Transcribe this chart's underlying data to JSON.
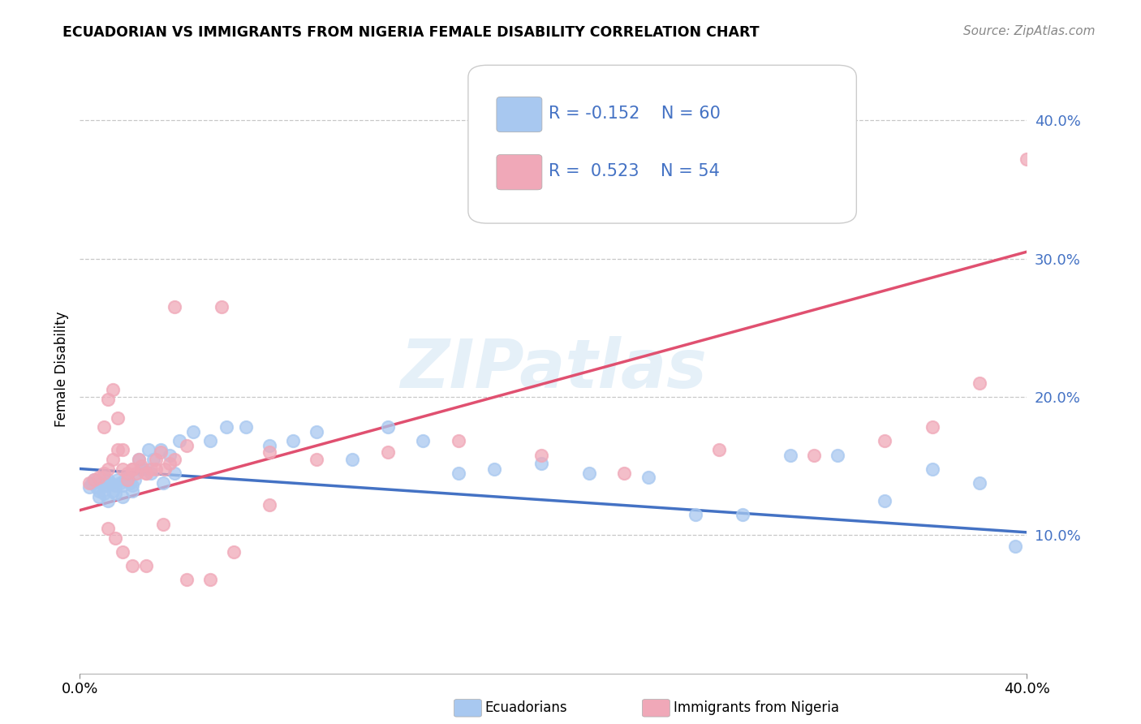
{
  "title": "ECUADORIAN VS IMMIGRANTS FROM NIGERIA FEMALE DISABILITY CORRELATION CHART",
  "source": "Source: ZipAtlas.com",
  "ylabel": "Female Disability",
  "watermark": "ZIPatlas",
  "xlim": [
    0.0,
    0.4
  ],
  "ylim": [
    0.0,
    0.44
  ],
  "ytick_labels": [
    "10.0%",
    "20.0%",
    "30.0%",
    "40.0%"
  ],
  "ytick_values": [
    0.1,
    0.2,
    0.3,
    0.4
  ],
  "xtick_labels": [
    "0.0%",
    "40.0%"
  ],
  "xtick_values": [
    0.0,
    0.4
  ],
  "grid_color": "#c8c8c8",
  "background_color": "#ffffff",
  "ecuadorians_color": "#a8c8f0",
  "nigeria_color": "#f0a8b8",
  "ecuadorians_line_color": "#4472c4",
  "nigeria_line_color": "#e05070",
  "legend_R_ecuador": "R = -0.152",
  "legend_N_ecuador": "N = 60",
  "legend_R_nigeria": "R =  0.523",
  "legend_N_nigeria": "N = 54",
  "legend_label_ecuador": "Ecuadorians",
  "legend_label_nigeria": "Immigrants from Nigeria",
  "ecuador_scatter_x": [
    0.004,
    0.005,
    0.006,
    0.007,
    0.008,
    0.009,
    0.01,
    0.011,
    0.012,
    0.013,
    0.014,
    0.015,
    0.016,
    0.017,
    0.018,
    0.019,
    0.02,
    0.021,
    0.022,
    0.023,
    0.025,
    0.027,
    0.029,
    0.031,
    0.034,
    0.038,
    0.042,
    0.048,
    0.055,
    0.062,
    0.07,
    0.08,
    0.09,
    0.1,
    0.115,
    0.13,
    0.145,
    0.16,
    0.175,
    0.195,
    0.215,
    0.24,
    0.26,
    0.28,
    0.3,
    0.32,
    0.34,
    0.36,
    0.38,
    0.395,
    0.008,
    0.01,
    0.012,
    0.015,
    0.018,
    0.022,
    0.026,
    0.03,
    0.035,
    0.04
  ],
  "ecuador_scatter_y": [
    0.135,
    0.138,
    0.14,
    0.135,
    0.132,
    0.138,
    0.142,
    0.136,
    0.14,
    0.138,
    0.132,
    0.136,
    0.14,
    0.138,
    0.136,
    0.14,
    0.142,
    0.138,
    0.136,
    0.14,
    0.155,
    0.148,
    0.162,
    0.155,
    0.162,
    0.158,
    0.168,
    0.175,
    0.168,
    0.178,
    0.178,
    0.165,
    0.168,
    0.175,
    0.155,
    0.178,
    0.168,
    0.145,
    0.148,
    0.152,
    0.145,
    0.142,
    0.115,
    0.115,
    0.158,
    0.158,
    0.125,
    0.148,
    0.138,
    0.092,
    0.128,
    0.13,
    0.125,
    0.13,
    0.128,
    0.132,
    0.148,
    0.145,
    0.138,
    0.145
  ],
  "nigeria_scatter_x": [
    0.004,
    0.006,
    0.008,
    0.01,
    0.012,
    0.014,
    0.016,
    0.018,
    0.02,
    0.022,
    0.024,
    0.026,
    0.028,
    0.03,
    0.032,
    0.034,
    0.036,
    0.038,
    0.04,
    0.045,
    0.01,
    0.012,
    0.014,
    0.016,
    0.018,
    0.02,
    0.022,
    0.025,
    0.028,
    0.032,
    0.04,
    0.06,
    0.08,
    0.1,
    0.13,
    0.16,
    0.195,
    0.23,
    0.27,
    0.31,
    0.34,
    0.36,
    0.38,
    0.4,
    0.012,
    0.015,
    0.018,
    0.022,
    0.028,
    0.035,
    0.045,
    0.055,
    0.065,
    0.08
  ],
  "nigeria_scatter_y": [
    0.138,
    0.14,
    0.142,
    0.145,
    0.148,
    0.155,
    0.162,
    0.148,
    0.14,
    0.148,
    0.145,
    0.15,
    0.145,
    0.148,
    0.155,
    0.16,
    0.148,
    0.152,
    0.155,
    0.165,
    0.178,
    0.198,
    0.205,
    0.185,
    0.162,
    0.145,
    0.148,
    0.155,
    0.145,
    0.148,
    0.265,
    0.265,
    0.16,
    0.155,
    0.16,
    0.168,
    0.158,
    0.145,
    0.162,
    0.158,
    0.168,
    0.178,
    0.21,
    0.372,
    0.105,
    0.098,
    0.088,
    0.078,
    0.078,
    0.108,
    0.068,
    0.068,
    0.088,
    0.122
  ],
  "ecu_line_x0": 0.0,
  "ecu_line_y0": 0.148,
  "ecu_line_x1": 0.4,
  "ecu_line_y1": 0.102,
  "nig_line_x0": 0.0,
  "nig_line_y0": 0.118,
  "nig_line_x1": 0.4,
  "nig_line_y1": 0.305
}
